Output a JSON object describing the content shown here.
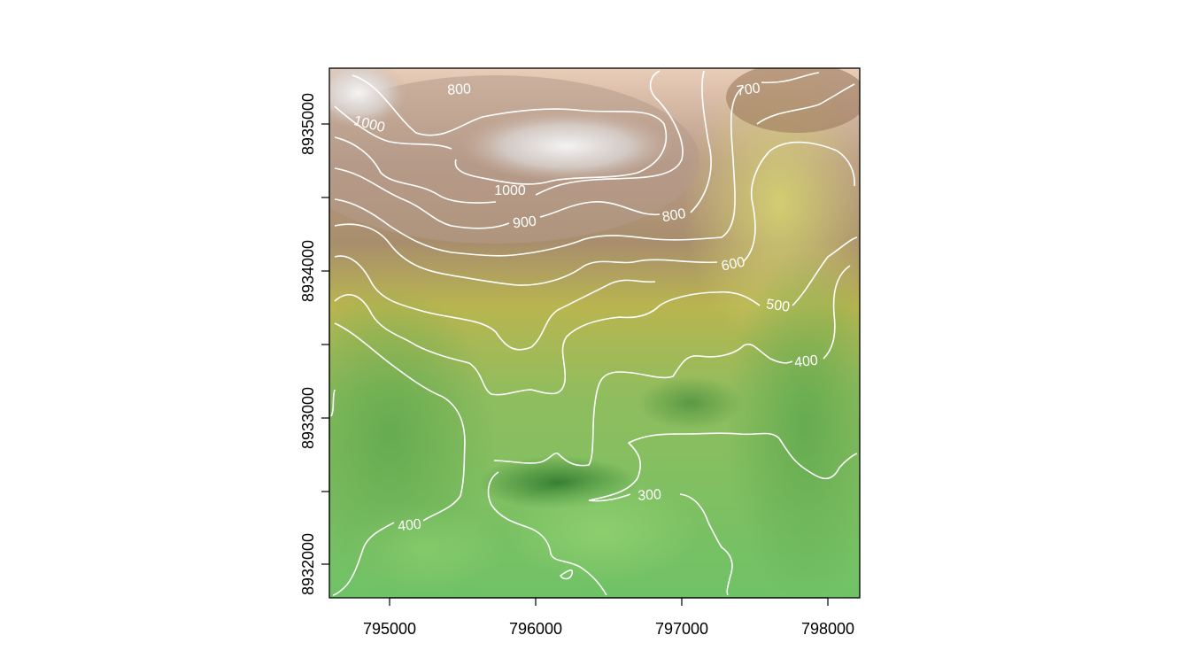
{
  "map": {
    "x_ticks": [
      "795000",
      "796000",
      "797000",
      "798000"
    ],
    "y_ticks": [
      "8932000",
      "8933000",
      "8934000",
      "8935000"
    ],
    "contour_labels": [
      "800",
      "700",
      "1000",
      "1000",
      "900",
      "800",
      "600",
      "500",
      "400",
      "300",
      "400"
    ],
    "colors": {
      "contour": "#ffffff",
      "lowland": "#6fbf60",
      "midland": "#b9bd52",
      "upland": "#b99a88",
      "summit": "#f2f2f2",
      "axis": "#000000"
    }
  }
}
